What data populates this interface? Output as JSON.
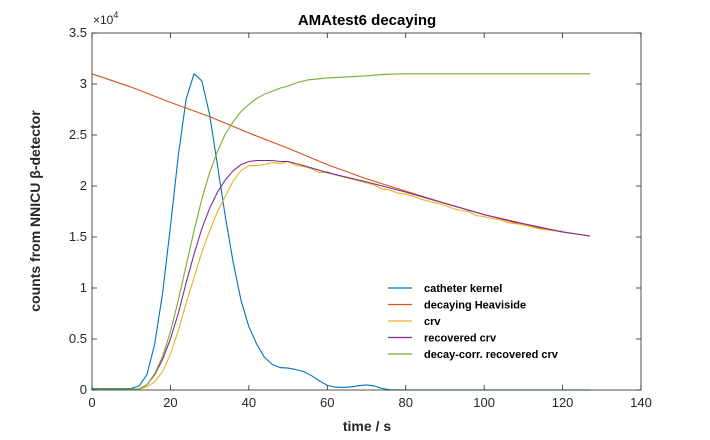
{
  "chart_data": {
    "type": "line",
    "title": "AMAtest6 decaying",
    "xlabel": "time / s",
    "ylabel": "counts from NNICU β-detector",
    "y_exponent_label": "×10",
    "y_exponent_power": "4",
    "xlim": [
      0,
      140
    ],
    "ylim": [
      0,
      35000
    ],
    "x_ticks": [
      0,
      20,
      40,
      60,
      80,
      100,
      120,
      140
    ],
    "x_tick_labels": [
      "0",
      "20",
      "40",
      "60",
      "80",
      "100",
      "120",
      "140"
    ],
    "y_ticks": [
      0,
      5000,
      10000,
      15000,
      20000,
      25000,
      30000,
      35000
    ],
    "y_tick_labels": [
      "0",
      "0.5",
      "1",
      "1.5",
      "2",
      "2.5",
      "3",
      "3.5"
    ],
    "grid": false,
    "legend_position": "lower-right",
    "series": [
      {
        "name": "catheter kernel",
        "color": "#0072BD",
        "points": [
          [
            0,
            150
          ],
          [
            10,
            150
          ],
          [
            12,
            400
          ],
          [
            14,
            1500
          ],
          [
            16,
            4500
          ],
          [
            18,
            9500
          ],
          [
            20,
            16000
          ],
          [
            22,
            23000
          ],
          [
            24,
            28500
          ],
          [
            26,
            31000
          ],
          [
            28,
            30300
          ],
          [
            30,
            27000
          ],
          [
            32,
            22000
          ],
          [
            34,
            17000
          ],
          [
            36,
            12500
          ],
          [
            38,
            8800
          ],
          [
            40,
            6200
          ],
          [
            42,
            4500
          ],
          [
            44,
            3200
          ],
          [
            46,
            2500
          ],
          [
            48,
            2200
          ],
          [
            50,
            2150
          ],
          [
            52,
            2000
          ],
          [
            54,
            1800
          ],
          [
            56,
            1400
          ],
          [
            58,
            900
          ],
          [
            60,
            450
          ],
          [
            62,
            280
          ],
          [
            64,
            250
          ],
          [
            66,
            300
          ],
          [
            68,
            420
          ],
          [
            70,
            500
          ],
          [
            72,
            400
          ],
          [
            74,
            150
          ],
          [
            76,
            20
          ],
          [
            80,
            0
          ],
          [
            127,
            0
          ]
        ]
      },
      {
        "name": "decaying Heaviside",
        "color": "#D95319",
        "points": [
          [
            0,
            31000
          ],
          [
            10,
            29700
          ],
          [
            20,
            28200
          ],
          [
            30,
            26800
          ],
          [
            40,
            25200
          ],
          [
            50,
            23700
          ],
          [
            60,
            22100
          ],
          [
            70,
            20700
          ],
          [
            80,
            19500
          ],
          [
            90,
            18300
          ],
          [
            100,
            17200
          ],
          [
            110,
            16200
          ],
          [
            120,
            15500
          ],
          [
            127,
            15100
          ]
        ]
      },
      {
        "name": "crv",
        "color": "#EDB120",
        "points": [
          [
            0,
            100
          ],
          [
            10,
            100
          ],
          [
            12,
            100
          ],
          [
            14,
            300
          ],
          [
            16,
            800
          ],
          [
            18,
            1800
          ],
          [
            20,
            3500
          ],
          [
            22,
            5800
          ],
          [
            24,
            8500
          ],
          [
            26,
            11000
          ],
          [
            28,
            13500
          ],
          [
            30,
            15600
          ],
          [
            32,
            17500
          ],
          [
            34,
            19000
          ],
          [
            36,
            20500
          ],
          [
            38,
            21500
          ],
          [
            40,
            22000
          ],
          [
            42,
            22000
          ],
          [
            44,
            22100
          ],
          [
            46,
            22300
          ],
          [
            48,
            22200
          ],
          [
            50,
            22400
          ],
          [
            52,
            22000
          ],
          [
            54,
            21900
          ],
          [
            56,
            21700
          ],
          [
            58,
            21300
          ],
          [
            60,
            21400
          ],
          [
            62,
            21100
          ],
          [
            64,
            20900
          ],
          [
            66,
            20700
          ],
          [
            68,
            20500
          ],
          [
            70,
            20300
          ],
          [
            72,
            20100
          ],
          [
            74,
            19700
          ],
          [
            76,
            19600
          ],
          [
            78,
            19300
          ],
          [
            80,
            19200
          ],
          [
            82,
            19000
          ],
          [
            84,
            18700
          ],
          [
            86,
            18500
          ],
          [
            88,
            18300
          ],
          [
            90,
            18100
          ],
          [
            92,
            17800
          ],
          [
            94,
            17600
          ],
          [
            96,
            17500
          ],
          [
            98,
            17100
          ],
          [
            100,
            17000
          ],
          [
            102,
            16800
          ],
          [
            104,
            16700
          ],
          [
            106,
            16400
          ],
          [
            108,
            16300
          ],
          [
            110,
            16200
          ],
          [
            112,
            16000
          ],
          [
            114,
            15800
          ],
          [
            116,
            15700
          ],
          [
            118,
            15600
          ],
          [
            120,
            15600
          ]
        ]
      },
      {
        "name": "recovered crv",
        "color": "#7E2F8E",
        "points": [
          [
            0,
            100
          ],
          [
            10,
            100
          ],
          [
            12,
            100
          ],
          [
            14,
            500
          ],
          [
            16,
            1500
          ],
          [
            18,
            3000
          ],
          [
            20,
            5000
          ],
          [
            22,
            7500
          ],
          [
            24,
            10500
          ],
          [
            26,
            13300
          ],
          [
            28,
            15800
          ],
          [
            30,
            17800
          ],
          [
            32,
            19400
          ],
          [
            34,
            20600
          ],
          [
            36,
            21500
          ],
          [
            38,
            22100
          ],
          [
            40,
            22400
          ],
          [
            42,
            22500
          ],
          [
            44,
            22500
          ],
          [
            46,
            22500
          ],
          [
            48,
            22400
          ],
          [
            50,
            22400
          ],
          [
            54,
            22000
          ],
          [
            60,
            21300
          ],
          [
            70,
            20400
          ],
          [
            80,
            19400
          ],
          [
            90,
            18300
          ],
          [
            100,
            17200
          ],
          [
            110,
            16300
          ],
          [
            120,
            15500
          ],
          [
            127,
            15100
          ]
        ]
      },
      {
        "name": "decay-corr. recovered crv",
        "color": "#77AC30",
        "points": [
          [
            0,
            100
          ],
          [
            10,
            100
          ],
          [
            12,
            100
          ],
          [
            14,
            500
          ],
          [
            16,
            1600
          ],
          [
            18,
            3300
          ],
          [
            20,
            5700
          ],
          [
            22,
            8800
          ],
          [
            24,
            12200
          ],
          [
            26,
            15600
          ],
          [
            28,
            18700
          ],
          [
            30,
            21300
          ],
          [
            32,
            23400
          ],
          [
            34,
            25100
          ],
          [
            36,
            26300
          ],
          [
            38,
            27300
          ],
          [
            40,
            28000
          ],
          [
            42,
            28600
          ],
          [
            44,
            29000
          ],
          [
            46,
            29300
          ],
          [
            48,
            29600
          ],
          [
            50,
            29800
          ],
          [
            52,
            30100
          ],
          [
            55,
            30400
          ],
          [
            60,
            30600
          ],
          [
            65,
            30700
          ],
          [
            70,
            30800
          ],
          [
            75,
            30950
          ],
          [
            80,
            31000
          ],
          [
            127,
            31000
          ]
        ]
      }
    ]
  }
}
